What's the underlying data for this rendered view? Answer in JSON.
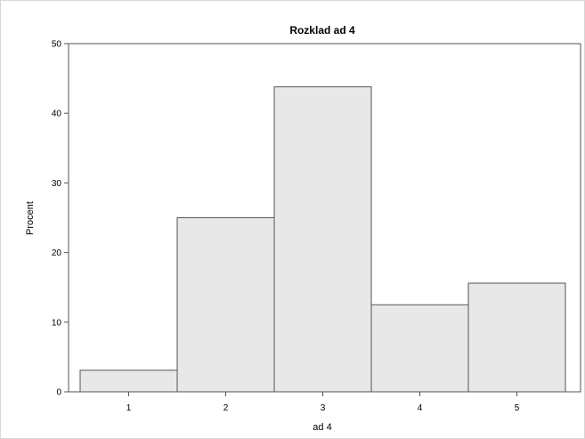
{
  "chart_data": {
    "type": "bar",
    "title": "Rozklad ad 4",
    "xlabel": "ad 4",
    "ylabel": "Procent",
    "categories": [
      "1",
      "2",
      "3",
      "4",
      "5"
    ],
    "values": [
      3.1,
      25.0,
      43.8,
      12.5,
      15.6
    ],
    "ylim": [
      0,
      50
    ],
    "yticks": [
      "0",
      "10",
      "20",
      "30",
      "40",
      "50"
    ],
    "grid": false,
    "legend": "none",
    "colors": {
      "bar_fill": "#e8e8e8",
      "bar_stroke": "#555555"
    }
  }
}
